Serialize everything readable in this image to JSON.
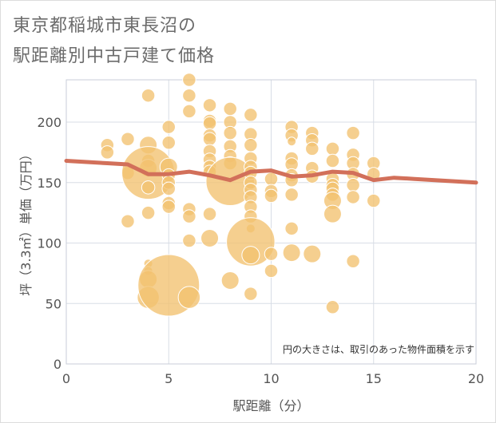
{
  "title_line1": "東京都稲城市東長沼の",
  "title_line2": "駅距離別中古戸建て価格",
  "chart_data": {
    "type": "scatter",
    "title": "東京都稲城市東長沼の駅距離別中古戸建て価格",
    "xlabel": "駅距離（分）",
    "ylabel": "坪（3.3㎡）単価（万円）",
    "xlim": [
      0,
      20
    ],
    "ylim": [
      0,
      235
    ],
    "x_ticks": [
      0,
      5,
      10,
      15,
      20
    ],
    "y_ticks": [
      0,
      50,
      100,
      150,
      200
    ],
    "grid": true,
    "note": "円の大きさは、取引のあった物件面積を示す",
    "colors": {
      "bubble_fill": "#F2C26F",
      "bubble_stroke": "#ffffff",
      "trend_line": "#D2705A",
      "grid": "#d8dde6",
      "plot_border": "#c9ced8"
    },
    "bubbles": [
      {
        "x": 2,
        "y": 181,
        "s": 3
      },
      {
        "x": 2,
        "y": 175,
        "s": 3
      },
      {
        "x": 3,
        "y": 186,
        "s": 3
      },
      {
        "x": 3,
        "y": 158,
        "s": 3
      },
      {
        "x": 3,
        "y": 118,
        "s": 3
      },
      {
        "x": 4,
        "y": 222,
        "s": 3
      },
      {
        "x": 4,
        "y": 181,
        "s": 4
      },
      {
        "x": 4,
        "y": 168,
        "s": 3
      },
      {
        "x": 4,
        "y": 162,
        "s": 4
      },
      {
        "x": 4,
        "y": 158,
        "s": 12
      },
      {
        "x": 4,
        "y": 146,
        "s": 3
      },
      {
        "x": 4,
        "y": 125,
        "s": 3
      },
      {
        "x": 4,
        "y": 83,
        "s": 2
      },
      {
        "x": 4,
        "y": 77,
        "s": 2
      },
      {
        "x": 4,
        "y": 70,
        "s": 4
      },
      {
        "x": 4,
        "y": 55,
        "s": 5
      },
      {
        "x": 5,
        "y": 196,
        "s": 3
      },
      {
        "x": 5,
        "y": 183,
        "s": 3
      },
      {
        "x": 5,
        "y": 163,
        "s": 4
      },
      {
        "x": 5,
        "y": 156,
        "s": 3
      },
      {
        "x": 5,
        "y": 150,
        "s": 3
      },
      {
        "x": 5,
        "y": 145,
        "s": 3
      },
      {
        "x": 5,
        "y": 133,
        "s": 3
      },
      {
        "x": 5,
        "y": 130,
        "s": 3
      },
      {
        "x": 5,
        "y": 65,
        "s": 14
      },
      {
        "x": 6,
        "y": 235,
        "s": 3
      },
      {
        "x": 6,
        "y": 222,
        "s": 3
      },
      {
        "x": 6,
        "y": 209,
        "s": 3
      },
      {
        "x": 6,
        "y": 128,
        "s": 3
      },
      {
        "x": 6,
        "y": 122,
        "s": 3
      },
      {
        "x": 6,
        "y": 102,
        "s": 3
      },
      {
        "x": 6,
        "y": 55,
        "s": 5
      },
      {
        "x": 7,
        "y": 214,
        "s": 3
      },
      {
        "x": 7,
        "y": 201,
        "s": 3
      },
      {
        "x": 7,
        "y": 199,
        "s": 3
      },
      {
        "x": 7,
        "y": 189,
        "s": 3
      },
      {
        "x": 7,
        "y": 186,
        "s": 3
      },
      {
        "x": 7,
        "y": 176,
        "s": 3
      },
      {
        "x": 7,
        "y": 169,
        "s": 3
      },
      {
        "x": 7,
        "y": 163,
        "s": 3
      },
      {
        "x": 7,
        "y": 159,
        "s": 3
      },
      {
        "x": 7,
        "y": 124,
        "s": 3
      },
      {
        "x": 7,
        "y": 104,
        "s": 4
      },
      {
        "x": 8,
        "y": 211,
        "s": 3
      },
      {
        "x": 8,
        "y": 200,
        "s": 3
      },
      {
        "x": 8,
        "y": 191,
        "s": 3
      },
      {
        "x": 8,
        "y": 180,
        "s": 3
      },
      {
        "x": 8,
        "y": 172,
        "s": 3
      },
      {
        "x": 8,
        "y": 166,
        "s": 3
      },
      {
        "x": 8,
        "y": 151,
        "s": 11
      },
      {
        "x": 8,
        "y": 69,
        "s": 4
      },
      {
        "x": 9,
        "y": 206,
        "s": 3
      },
      {
        "x": 9,
        "y": 190,
        "s": 3
      },
      {
        "x": 9,
        "y": 181,
        "s": 3
      },
      {
        "x": 9,
        "y": 170,
        "s": 3
      },
      {
        "x": 9,
        "y": 163,
        "s": 3
      },
      {
        "x": 9,
        "y": 158,
        "s": 3
      },
      {
        "x": 9,
        "y": 150,
        "s": 3
      },
      {
        "x": 9,
        "y": 144,
        "s": 3
      },
      {
        "x": 9,
        "y": 138,
        "s": 3
      },
      {
        "x": 9,
        "y": 130,
        "s": 3
      },
      {
        "x": 9,
        "y": 122,
        "s": 3
      },
      {
        "x": 9,
        "y": 112,
        "s": 2
      },
      {
        "x": 9,
        "y": 101,
        "s": 11
      },
      {
        "x": 9,
        "y": 90,
        "s": 4
      },
      {
        "x": 9,
        "y": 58,
        "s": 3
      },
      {
        "x": 10,
        "y": 153,
        "s": 3
      },
      {
        "x": 10,
        "y": 143,
        "s": 3
      },
      {
        "x": 10,
        "y": 139,
        "s": 3
      },
      {
        "x": 10,
        "y": 91,
        "s": 3
      },
      {
        "x": 10,
        "y": 77,
        "s": 3
      },
      {
        "x": 11,
        "y": 196,
        "s": 3
      },
      {
        "x": 11,
        "y": 189,
        "s": 3
      },
      {
        "x": 11,
        "y": 184,
        "s": 2
      },
      {
        "x": 11,
        "y": 170,
        "s": 3
      },
      {
        "x": 11,
        "y": 165,
        "s": 3
      },
      {
        "x": 11,
        "y": 156,
        "s": 3
      },
      {
        "x": 11,
        "y": 152,
        "s": 3
      },
      {
        "x": 11,
        "y": 140,
        "s": 3
      },
      {
        "x": 11,
        "y": 112,
        "s": 3
      },
      {
        "x": 11,
        "y": 92,
        "s": 4
      },
      {
        "x": 12,
        "y": 191,
        "s": 3
      },
      {
        "x": 12,
        "y": 185,
        "s": 3
      },
      {
        "x": 12,
        "y": 178,
        "s": 3
      },
      {
        "x": 12,
        "y": 162,
        "s": 3
      },
      {
        "x": 12,
        "y": 155,
        "s": 3
      },
      {
        "x": 12,
        "y": 91,
        "s": 4
      },
      {
        "x": 13,
        "y": 178,
        "s": 3
      },
      {
        "x": 13,
        "y": 168,
        "s": 3
      },
      {
        "x": 13,
        "y": 153,
        "s": 3
      },
      {
        "x": 13,
        "y": 148,
        "s": 3
      },
      {
        "x": 13,
        "y": 145,
        "s": 3
      },
      {
        "x": 13,
        "y": 140,
        "s": 3
      },
      {
        "x": 13,
        "y": 135,
        "s": 4
      },
      {
        "x": 13,
        "y": 124,
        "s": 4
      },
      {
        "x": 13,
        "y": 47,
        "s": 3
      },
      {
        "x": 14,
        "y": 191,
        "s": 3
      },
      {
        "x": 14,
        "y": 173,
        "s": 3
      },
      {
        "x": 14,
        "y": 166,
        "s": 3
      },
      {
        "x": 14,
        "y": 157,
        "s": 3
      },
      {
        "x": 14,
        "y": 148,
        "s": 3
      },
      {
        "x": 14,
        "y": 138,
        "s": 3
      },
      {
        "x": 14,
        "y": 85,
        "s": 3
      },
      {
        "x": 15,
        "y": 166,
        "s": 3
      },
      {
        "x": 15,
        "y": 157,
        "s": 3
      },
      {
        "x": 15,
        "y": 135,
        "s": 3
      }
    ],
    "trend": {
      "x": [
        0,
        1,
        2,
        3,
        4,
        5,
        6,
        7,
        8,
        9,
        10,
        11,
        12,
        13,
        14,
        15,
        16,
        17,
        18,
        19,
        20
      ],
      "y": [
        168,
        167,
        166,
        165,
        157,
        157,
        159,
        156,
        152,
        159,
        160,
        155,
        156,
        159,
        158,
        152,
        154,
        153,
        152,
        151,
        150
      ]
    }
  }
}
